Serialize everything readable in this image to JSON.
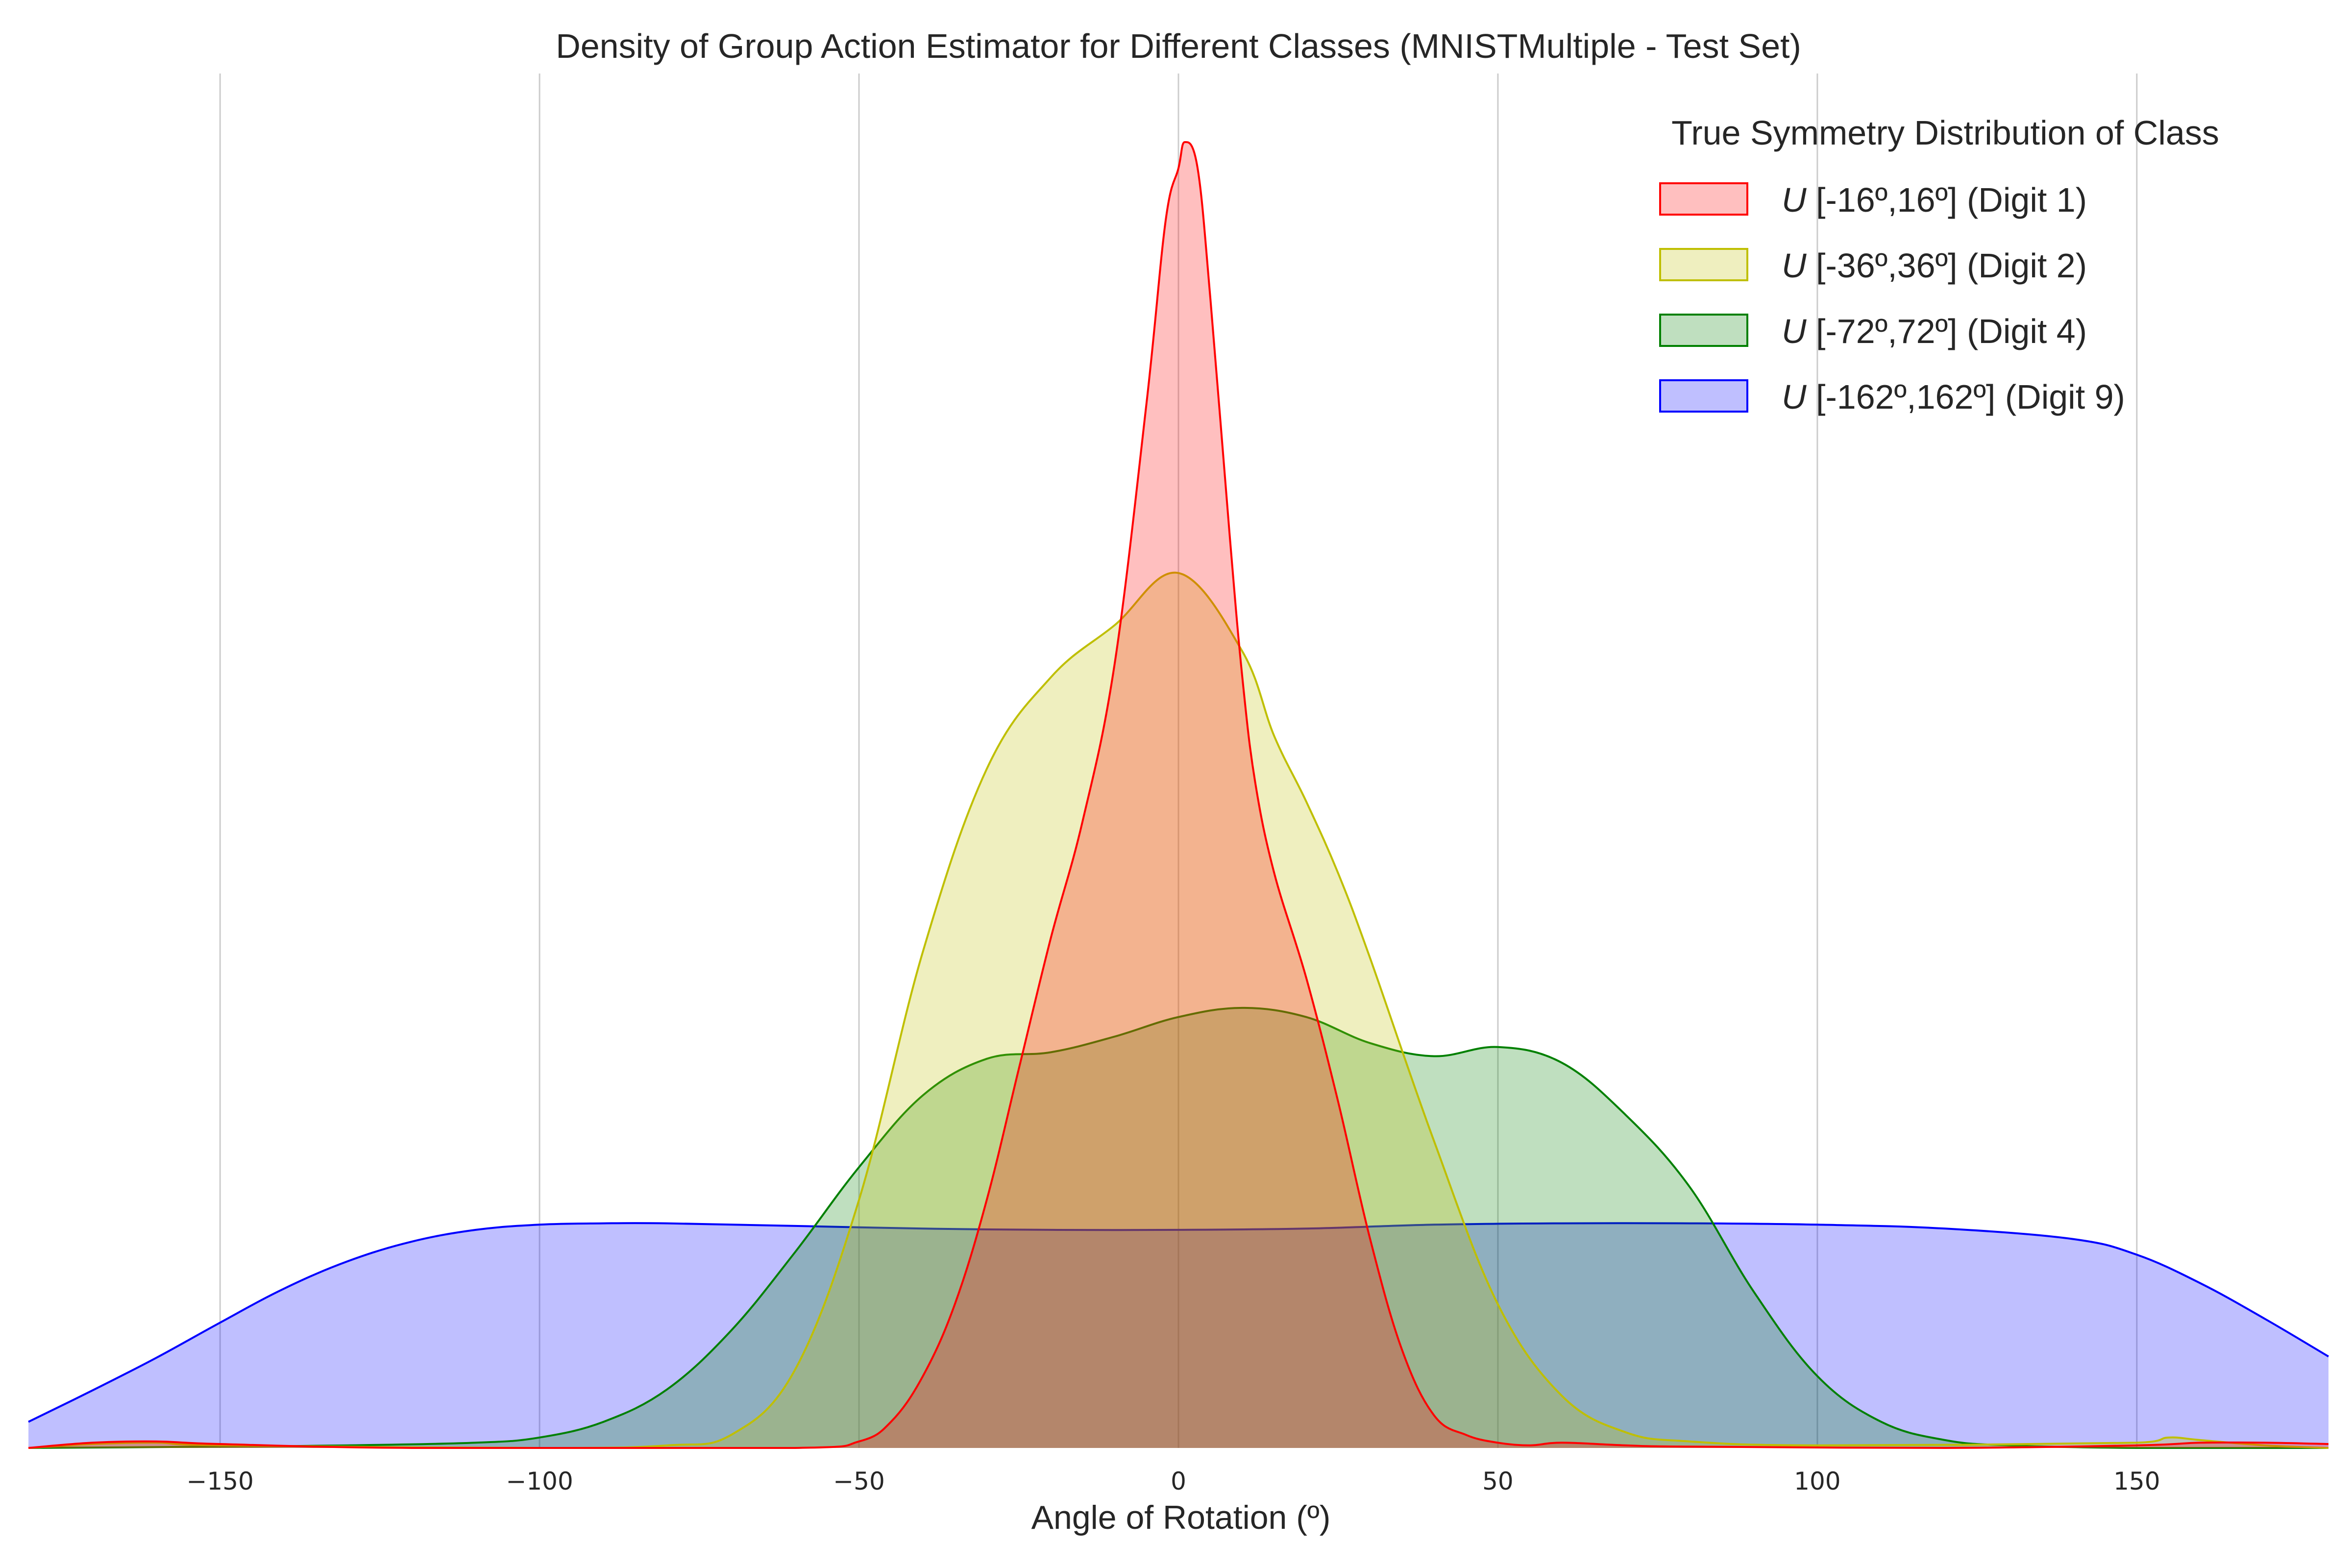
{
  "chart_data": {
    "type": "area",
    "title": "Density of Group Action Estimator for Different Classes (MNISTMultiple - Test Set)",
    "xlabel": "Angle of Rotation (º)",
    "ylabel": "",
    "xlim": [
      -180,
      180
    ],
    "ylim": [
      0,
      1
    ],
    "xticks": [
      -150,
      -100,
      -50,
      0,
      50,
      100,
      150
    ],
    "xtick_labels": [
      "−150",
      "−100",
      "−50",
      "0",
      "50",
      "100",
      "150"
    ],
    "grid": "vertical",
    "legend": {
      "title": "True Symmetry Distribution of Class",
      "placement": "top-right"
    },
    "series": [
      {
        "name": "U [-162º,162º] (Digit 9)",
        "legend_prefix": "U",
        "legend_rest": " [-162º,162º] (Digit 9)",
        "color": "#0000ff",
        "x": [
          -180,
          -170,
          -160,
          -150,
          -140,
          -130,
          -120,
          -110,
          -100,
          -90,
          -80,
          -60,
          -40,
          -20,
          0,
          20,
          40,
          60,
          80,
          100,
          120,
          140,
          150,
          160,
          170,
          180
        ],
        "y": [
          0.02,
          0.044,
          0.069,
          0.096,
          0.122,
          0.143,
          0.158,
          0.167,
          0.171,
          0.172,
          0.172,
          0.17,
          0.168,
          0.167,
          0.167,
          0.168,
          0.171,
          0.172,
          0.172,
          0.171,
          0.168,
          0.16,
          0.148,
          0.126,
          0.099,
          0.07
        ]
      },
      {
        "name": "U [-72º,72º] (Digit 4)",
        "legend_prefix": "U",
        "legend_rest": " [-72º,72º] (Digit 4)",
        "color": "#008000",
        "x": [
          -180,
          -150,
          -130,
          -110,
          -100,
          -90,
          -80,
          -70,
          -60,
          -50,
          -40,
          -30,
          -20,
          -10,
          0,
          10,
          20,
          30,
          40,
          50,
          60,
          70,
          80,
          90,
          100,
          110,
          120,
          130,
          150,
          180
        ],
        "y": [
          0.0,
          0.001,
          0.002,
          0.004,
          0.008,
          0.02,
          0.045,
          0.09,
          0.15,
          0.215,
          0.27,
          0.298,
          0.303,
          0.315,
          0.33,
          0.337,
          0.33,
          0.31,
          0.3,
          0.307,
          0.295,
          0.255,
          0.2,
          0.12,
          0.055,
          0.02,
          0.006,
          0.002,
          0.0,
          0.0
        ]
      },
      {
        "name": "U [-36º,36º] (Digit 2)",
        "legend_prefix": "U",
        "legend_rest": " [-36º,36º] (Digit 2)",
        "color": "#bfbf00",
        "x": [
          -180,
          -170,
          -160,
          -150,
          -100,
          -80,
          -70,
          -60,
          -50,
          -40,
          -30,
          -20,
          -10,
          0,
          10,
          15,
          20,
          25,
          30,
          40,
          50,
          60,
          70,
          80,
          100,
          150,
          155,
          160,
          170,
          180
        ],
        "y": [
          0.0,
          0.003,
          0.004,
          0.002,
          0.0,
          0.002,
          0.01,
          0.06,
          0.19,
          0.38,
          0.52,
          0.59,
          0.63,
          0.67,
          0.61,
          0.545,
          0.495,
          0.44,
          0.375,
          0.235,
          0.11,
          0.04,
          0.012,
          0.005,
          0.002,
          0.004,
          0.008,
          0.006,
          0.002,
          0.0
        ]
      },
      {
        "name": "U [-16º,16º]  (Digit 1)",
        "legend_prefix": "U",
        "legend_rest": " [-16º,16º]  (Digit 1)",
        "color": "#ff0000",
        "x": [
          -180,
          -170,
          -160,
          -150,
          -120,
          -60,
          -50,
          -45,
          -40,
          -35,
          -30,
          -25,
          -20,
          -15,
          -10,
          -5,
          -2,
          0,
          1,
          3,
          5,
          8,
          10,
          12,
          15,
          20,
          25,
          30,
          35,
          40,
          45,
          50,
          55,
          60,
          70,
          80,
          120,
          150,
          160,
          170,
          180
        ],
        "y": [
          0.0,
          0.004,
          0.005,
          0.003,
          0.0,
          0.0,
          0.005,
          0.02,
          0.055,
          0.11,
          0.19,
          0.29,
          0.39,
          0.48,
          0.6,
          0.8,
          0.94,
          0.98,
          1.0,
          0.98,
          0.88,
          0.7,
          0.59,
          0.51,
          0.44,
          0.36,
          0.265,
          0.16,
          0.075,
          0.025,
          0.01,
          0.004,
          0.002,
          0.004,
          0.002,
          0.001,
          0.0,
          0.002,
          0.004,
          0.004,
          0.003
        ]
      }
    ]
  }
}
